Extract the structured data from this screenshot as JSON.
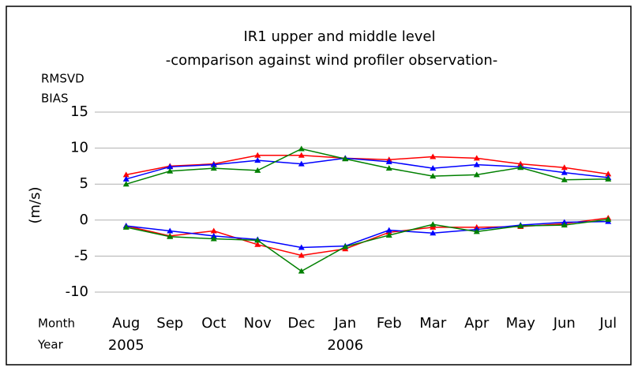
{
  "chart_data": {
    "type": "line",
    "title": [
      "IR1 upper and middle level",
      "-comparison against wind profiler observation-"
    ],
    "ylabel": "(m/s)",
    "quantities": [
      "RMSVD",
      "BIAS"
    ],
    "row_labels": [
      "Month",
      "Year"
    ],
    "categories": [
      "Aug",
      "Sep",
      "Oct",
      "Nov",
      "Dec",
      "Jan",
      "Feb",
      "Mar",
      "Apr",
      "May",
      "Jun",
      "Jul"
    ],
    "years": [
      "2005",
      null,
      null,
      null,
      null,
      "2006",
      null,
      null,
      null,
      null,
      null,
      null
    ],
    "ylim": [
      -10,
      15
    ],
    "yticks": [
      -10,
      -5,
      0,
      5,
      10,
      15
    ],
    "grid": true,
    "series": [
      {
        "color": "#ff0000",
        "values": [
          6.3,
          7.5,
          7.8,
          9.0,
          9.0,
          8.6,
          8.4,
          8.8,
          8.6,
          7.8,
          7.3,
          6.4
        ]
      },
      {
        "color": "#0000ff",
        "values": [
          5.7,
          7.4,
          7.7,
          8.3,
          7.8,
          8.6,
          8.1,
          7.2,
          7.7,
          7.4,
          6.6,
          5.9
        ]
      },
      {
        "color": "#008000",
        "values": [
          5.0,
          6.8,
          7.2,
          6.9,
          9.9,
          8.5,
          7.2,
          6.1,
          6.3,
          7.3,
          5.6,
          5.7
        ]
      },
      {
        "color": "#ff0000",
        "values": [
          -0.8,
          -2.2,
          -1.5,
          -3.4,
          -4.9,
          -4.0,
          -1.7,
          -1.0,
          -1.0,
          -0.9,
          -0.5,
          0.3
        ]
      },
      {
        "color": "#0000ff",
        "values": [
          -0.8,
          -1.5,
          -2.2,
          -2.7,
          -3.8,
          -3.6,
          -1.4,
          -1.8,
          -1.3,
          -0.7,
          -0.3,
          -0.2
        ]
      },
      {
        "color": "#008000",
        "values": [
          -1.0,
          -2.3,
          -2.6,
          -2.8,
          -7.1,
          -3.7,
          -2.1,
          -0.6,
          -1.6,
          -0.8,
          -0.7,
          0.1
        ]
      }
    ]
  }
}
